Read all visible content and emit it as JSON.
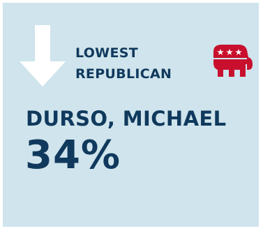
{
  "card": {
    "heading_line1": "LOWEST",
    "heading_line2": "REPUBLICAN",
    "candidate_name": "DURSO, MICHAEL",
    "percentage": "34%"
  },
  "icons": {
    "arrow": "down-arrow-icon",
    "party": "republican-elephant-icon"
  },
  "colors": {
    "background": "#cfe4ec",
    "text": "#10395d",
    "arrow": "#ffffff",
    "elephant": "#c8102e"
  }
}
